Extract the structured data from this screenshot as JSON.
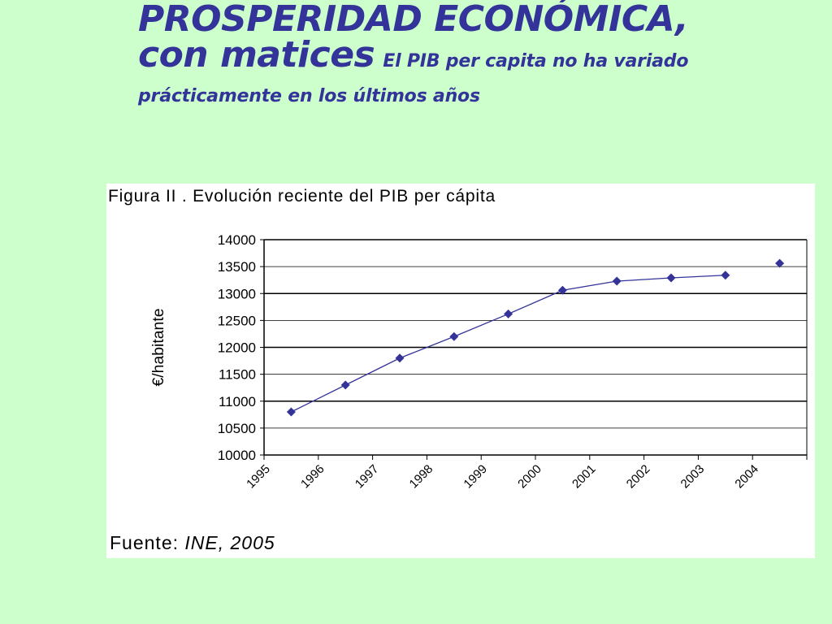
{
  "slide": {
    "title_line1": "PROSPERIDAD ECONÓMICA,",
    "title_line2": "con matices",
    "subtitle_part1": "El PIB per capita no ha variado",
    "subtitle_part2": "prácticamente en los últimos años"
  },
  "colors": {
    "background": "#ccffcc",
    "title": "#33339a",
    "series": "#33339a"
  },
  "chart_data": {
    "type": "line",
    "title": "Figura II . Evolución reciente del PIB per cápita",
    "xlabel": "",
    "ylabel": "€/habitante",
    "x_ticks": [
      "1995",
      "1996",
      "1997",
      "1998",
      "1999",
      "2000",
      "2001",
      "2002",
      "2003",
      "2004"
    ],
    "y_ticks": [
      "10000",
      "10500",
      "11000",
      "11500",
      "12000",
      "12500",
      "13000",
      "13500",
      "14000"
    ],
    "ylim": [
      10000,
      14000
    ],
    "grid": true,
    "legend": "none",
    "source_label": "Fuente:",
    "source_value": "INE, 2005",
    "series": [
      {
        "x": [
          "1995",
          "1996",
          "1997",
          "1998",
          "1999",
          "2000",
          "2001",
          "2002",
          "2003",
          "2004"
        ],
        "values": [
          10800,
          11300,
          11800,
          12200,
          12620,
          13060,
          13230,
          13290,
          13340,
          13560
        ],
        "connected": [
          true,
          true,
          true,
          true,
          true,
          true,
          true,
          true,
          true,
          false
        ]
      }
    ]
  }
}
